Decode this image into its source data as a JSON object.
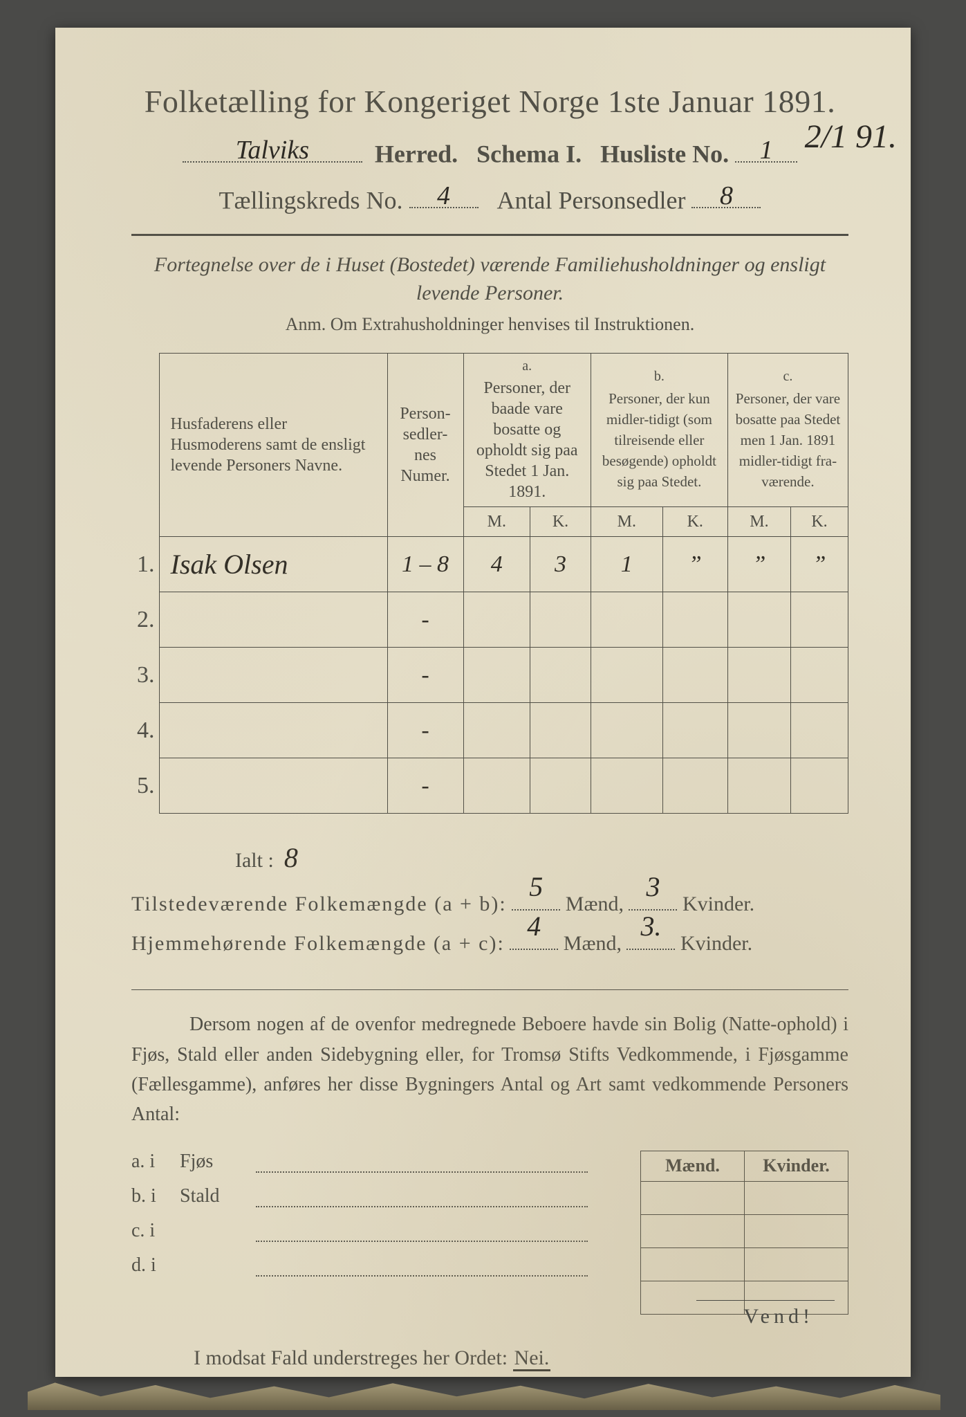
{
  "colors": {
    "paper": "#e8e2cd",
    "ink": "#4a4a44",
    "hand": "#2d2a24",
    "background": "#4a4a48"
  },
  "header": {
    "title": "Folketælling for Kongeriget Norge 1ste Januar 1891.",
    "herred_label": "Herred.",
    "herred_value": "Talviks",
    "schema": "Schema I.",
    "husliste_label": "Husliste No.",
    "husliste_value": "1",
    "kreds_label": "Tællingskreds No.",
    "kreds_value": "4",
    "antal_label": "Antal Personsedler",
    "antal_value": "8",
    "margin_note": "2/1 91."
  },
  "sub": {
    "line1": "Fortegnelse over de i Huset (Bostedet) værende Familiehusholdninger og ensligt levende Personer.",
    "line2": "Anm.  Om Extrahusholdninger henvises til Instruktionen."
  },
  "table": {
    "col_names": "Husfaderens eller Husmoderens samt de ensligt levende Personers Navne.",
    "col_num": "Person-\nsedler-\nnes\nNumer.",
    "group_a_tag": "a.",
    "group_a": "Personer, der baade vare bosatte og opholdt sig paa Stedet 1 Jan. 1891.",
    "group_b_tag": "b.",
    "group_b": "Personer, der kun midler-tidigt (som tilreisende eller besøgende) opholdt sig paa Stedet.",
    "group_c_tag": "c.",
    "group_c": "Personer, der vare bosatte paa Stedet men 1 Jan. 1891 midler-tidigt fra-værende.",
    "M": "M.",
    "K": "K.",
    "rows": [
      {
        "n": "1.",
        "name": "Isak Olsen",
        "num": "1 – 8",
        "aM": "4",
        "aK": "3",
        "bM": "1",
        "bK": "”",
        "cM": "”",
        "cK": "”"
      },
      {
        "n": "2.",
        "name": "",
        "num": "-",
        "aM": "",
        "aK": "",
        "bM": "",
        "bK": "",
        "cM": "",
        "cK": ""
      },
      {
        "n": "3.",
        "name": "",
        "num": "-",
        "aM": "",
        "aK": "",
        "bM": "",
        "bK": "",
        "cM": "",
        "cK": ""
      },
      {
        "n": "4.",
        "name": "",
        "num": "-",
        "aM": "",
        "aK": "",
        "bM": "",
        "bK": "",
        "cM": "",
        "cK": ""
      },
      {
        "n": "5.",
        "name": "",
        "num": "-",
        "aM": "",
        "aK": "",
        "bM": "",
        "bK": "",
        "cM": "",
        "cK": ""
      }
    ]
  },
  "totals": {
    "ialt_label": "Ialt :",
    "ialt_value": "8",
    "line_ab": "Tilstedeværende Folkemængde (a + b):",
    "ab_m": "5",
    "ab_k": "3",
    "line_ac": "Hjemmehørende Folkemængde (a + c):",
    "ac_m": "4",
    "ac_k": "3.",
    "maend": "Mænd,",
    "kvinder": "Kvinder."
  },
  "prose": "Dersom nogen af de ovenfor medregnede Beboere havde sin Bolig (Natte-ophold) i Fjøs, Stald eller anden Sidebygning eller, for Tromsø Stifts Vedkommende, i Fjøsgamme (Fællesgamme), anføres her disse Bygningers Antal og Art samt vedkommende Personers Antal:",
  "buildings": {
    "head_m": "Mænd.",
    "head_k": "Kvinder.",
    "rows": [
      {
        "lead": "a.  i",
        "type": "Fjøs"
      },
      {
        "lead": "b.  i",
        "type": "Stald"
      },
      {
        "lead": "c.  i",
        "type": ""
      },
      {
        "lead": "d.  i",
        "type": ""
      }
    ]
  },
  "nei": {
    "text_pre": "I modsat Fald understreges her Ordet:",
    "word": "Nei."
  },
  "vend": "Vend!"
}
